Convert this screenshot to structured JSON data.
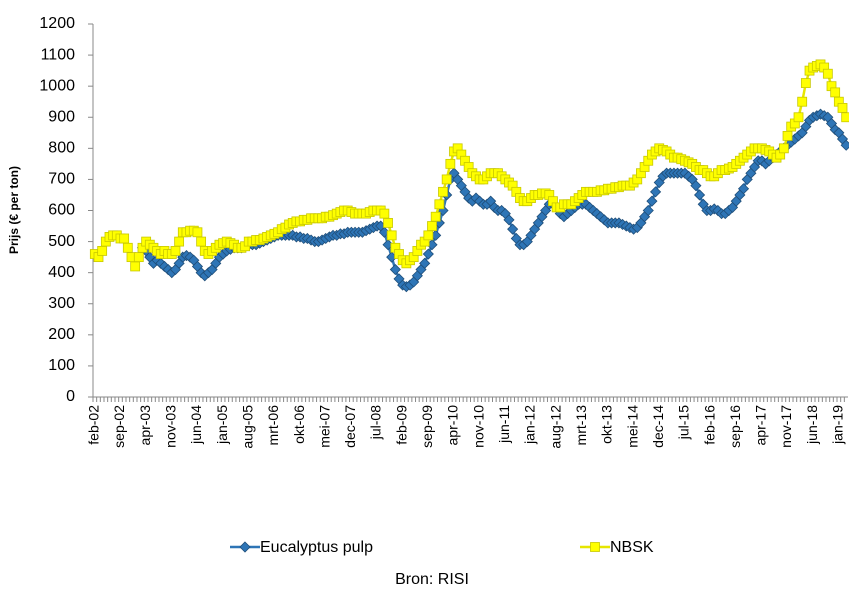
{
  "chart_data": {
    "type": "line",
    "y_label": "Prijs (€ per ton)",
    "source": "Bron: RISI",
    "ylim": [
      0,
      1200
    ],
    "yticks": [
      0,
      100,
      200,
      300,
      400,
      500,
      600,
      700,
      800,
      900,
      1000,
      1100,
      1200
    ],
    "categories": [
      "feb-02",
      null,
      null,
      null,
      null,
      null,
      null,
      "sep-02",
      null,
      null,
      null,
      null,
      null,
      null,
      "apr-03",
      null,
      null,
      null,
      null,
      null,
      null,
      "nov-03",
      null,
      null,
      null,
      null,
      null,
      null,
      "jun-04",
      null,
      null,
      null,
      null,
      null,
      null,
      "jan-05",
      null,
      null,
      null,
      null,
      null,
      null,
      "aug-05",
      null,
      null,
      null,
      null,
      null,
      null,
      "mrt-06",
      null,
      null,
      null,
      null,
      null,
      null,
      "okt-06",
      null,
      null,
      null,
      null,
      null,
      null,
      "mei-07",
      null,
      null,
      null,
      null,
      null,
      null,
      "dec-07",
      null,
      null,
      null,
      null,
      null,
      null,
      "jul-08",
      null,
      null,
      null,
      null,
      null,
      null,
      "feb-09",
      null,
      null,
      null,
      null,
      null,
      null,
      "sep-09",
      null,
      null,
      null,
      null,
      null,
      null,
      "apr-10",
      null,
      null,
      null,
      null,
      null,
      null,
      "nov-10",
      null,
      null,
      null,
      null,
      null,
      null,
      "jun-11",
      null,
      null,
      null,
      null,
      null,
      null,
      "jan-12",
      null,
      null,
      null,
      null,
      null,
      null,
      "aug-12",
      null,
      null,
      null,
      null,
      null,
      null,
      "mrt-13",
      null,
      null,
      null,
      null,
      null,
      null,
      "okt-13",
      null,
      null,
      null,
      null,
      null,
      null,
      "mei-14",
      null,
      null,
      null,
      null,
      null,
      null,
      "dec-14",
      null,
      null,
      null,
      null,
      null,
      null,
      "jul-15",
      null,
      null,
      null,
      null,
      null,
      null,
      "feb-16",
      null,
      null,
      null,
      null,
      null,
      null,
      "sep-16",
      null,
      null,
      null,
      null,
      null,
      null,
      "apr-17",
      null,
      null,
      null,
      null,
      null,
      null,
      "nov-17",
      null,
      null,
      null,
      null,
      null,
      null,
      "jun-18",
      null,
      null,
      null,
      null,
      null,
      null,
      "jan-19",
      null,
      null
    ],
    "series": [
      {
        "name": "Eucalyptus pulp",
        "color": "#2e75b6",
        "marker": "diamond",
        "values": [
          null,
          null,
          null,
          null,
          null,
          null,
          null,
          null,
          null,
          null,
          null,
          null,
          null,
          480,
          470,
          450,
          430,
          440,
          430,
          420,
          410,
          400,
          410,
          430,
          450,
          455,
          450,
          440,
          420,
          400,
          390,
          400,
          410,
          430,
          450,
          460,
          470,
          475,
          480,
          480,
          480,
          485,
          490,
          490,
          490,
          495,
          500,
          505,
          510,
          515,
          520,
          520,
          520,
          520,
          520,
          515,
          515,
          510,
          510,
          505,
          500,
          500,
          505,
          510,
          515,
          520,
          520,
          525,
          525,
          530,
          530,
          530,
          530,
          530,
          535,
          540,
          545,
          550,
          550,
          530,
          490,
          450,
          410,
          380,
          360,
          355,
          360,
          370,
          390,
          410,
          430,
          460,
          490,
          520,
          560,
          600,
          650,
          700,
          720,
          700,
          680,
          660,
          640,
          630,
          640,
          630,
          620,
          620,
          630,
          610,
          600,
          600,
          590,
          570,
          540,
          510,
          490,
          490,
          500,
          520,
          540,
          560,
          580,
          600,
          620,
          620,
          610,
          590,
          580,
          590,
          600,
          610,
          620,
          620,
          620,
          610,
          600,
          590,
          580,
          570,
          560,
          560,
          560,
          560,
          555,
          550,
          545,
          540,
          545,
          560,
          580,
          600,
          630,
          660,
          690,
          710,
          720,
          720,
          720,
          720,
          720,
          720,
          710,
          700,
          680,
          650,
          620,
          600,
          600,
          605,
          600,
          590,
          590,
          600,
          610,
          630,
          650,
          670,
          700,
          720,
          740,
          760,
          760,
          750,
          760,
          770,
          780,
          790,
          800,
          810,
          820,
          830,
          840,
          850,
          870,
          890,
          900,
          905,
          910,
          905,
          900,
          880,
          860,
          850,
          830,
          810
        ]
      },
      {
        "name": "NBSK",
        "color": "#ffff00",
        "marker": "square",
        "values": [
          460,
          450,
          470,
          500,
          515,
          520,
          520,
          510,
          510,
          480,
          450,
          420,
          450,
          480,
          500,
          490,
          480,
          470,
          460,
          470,
          460,
          460,
          470,
          500,
          530,
          530,
          535,
          535,
          530,
          500,
          470,
          460,
          470,
          480,
          490,
          495,
          500,
          495,
          490,
          480,
          480,
          485,
          500,
          500,
          505,
          505,
          510,
          515,
          520,
          525,
          530,
          540,
          545,
          555,
          560,
          565,
          565,
          570,
          570,
          575,
          575,
          575,
          575,
          580,
          580,
          585,
          590,
          595,
          600,
          600,
          595,
          590,
          590,
          590,
          590,
          595,
          600,
          600,
          600,
          590,
          560,
          520,
          480,
          460,
          440,
          430,
          440,
          450,
          470,
          490,
          500,
          520,
          550,
          580,
          620,
          660,
          700,
          750,
          790,
          800,
          780,
          760,
          740,
          720,
          710,
          700,
          700,
          710,
          720,
          720,
          720,
          710,
          700,
          690,
          680,
          660,
          640,
          630,
          630,
          640,
          650,
          650,
          655,
          655,
          650,
          630,
          610,
          610,
          620,
          620,
          620,
          630,
          640,
          650,
          660,
          660,
          660,
          660,
          665,
          665,
          670,
          670,
          675,
          675,
          680,
          680,
          680,
          690,
          700,
          720,
          740,
          760,
          780,
          790,
          800,
          795,
          790,
          780,
          770,
          770,
          765,
          760,
          755,
          750,
          740,
          730,
          730,
          720,
          710,
          710,
          720,
          730,
          730,
          735,
          740,
          750,
          760,
          770,
          780,
          790,
          800,
          800,
          800,
          795,
          790,
          780,
          770,
          780,
          800,
          840,
          870,
          880,
          900,
          950,
          1010,
          1050,
          1060,
          1065,
          1070,
          1060,
          1040,
          1000,
          980,
          950,
          930,
          900
        ]
      }
    ]
  }
}
